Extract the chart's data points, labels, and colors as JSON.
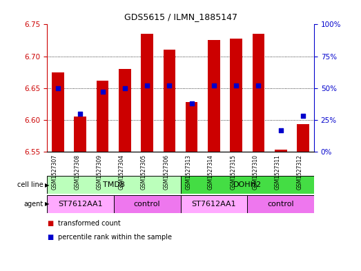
{
  "title": "GDS5615 / ILMN_1885147",
  "samples": [
    "GSM1527307",
    "GSM1527308",
    "GSM1527309",
    "GSM1527304",
    "GSM1527305",
    "GSM1527306",
    "GSM1527313",
    "GSM1527314",
    "GSM1527315",
    "GSM1527310",
    "GSM1527311",
    "GSM1527312"
  ],
  "bar_values": [
    6.675,
    6.605,
    6.662,
    6.68,
    6.735,
    6.71,
    6.628,
    6.725,
    6.728,
    6.735,
    6.553,
    6.593
  ],
  "bar_base": 6.55,
  "percentile_values": [
    50,
    30,
    47,
    50,
    52,
    52,
    38,
    52,
    52,
    52,
    17,
    28
  ],
  "ylim_left": [
    6.55,
    6.75
  ],
  "ylim_right": [
    0,
    100
  ],
  "yticks_left": [
    6.55,
    6.6,
    6.65,
    6.7,
    6.75
  ],
  "yticks_right": [
    0,
    25,
    50,
    75,
    100
  ],
  "ytick_labels_right": [
    "0%",
    "25%",
    "50%",
    "75%",
    "100%"
  ],
  "bar_color": "#cc0000",
  "dot_color": "#0000cc",
  "cell_line_groups": [
    {
      "label": "TMD8",
      "start": 0,
      "end": 5,
      "color": "#bbffbb"
    },
    {
      "label": "DOHH2",
      "start": 6,
      "end": 11,
      "color": "#44dd44"
    }
  ],
  "agent_groups": [
    {
      "label": "ST7612AA1",
      "start": 0,
      "end": 2,
      "color": "#ffaaff"
    },
    {
      "label": "control",
      "start": 3,
      "end": 5,
      "color": "#ee77ee"
    },
    {
      "label": "ST7612AA1",
      "start": 6,
      "end": 8,
      "color": "#ffaaff"
    },
    {
      "label": "control",
      "start": 9,
      "end": 11,
      "color": "#ee77ee"
    }
  ],
  "bar_width": 0.55,
  "fig_width": 5.23,
  "fig_height": 3.93
}
